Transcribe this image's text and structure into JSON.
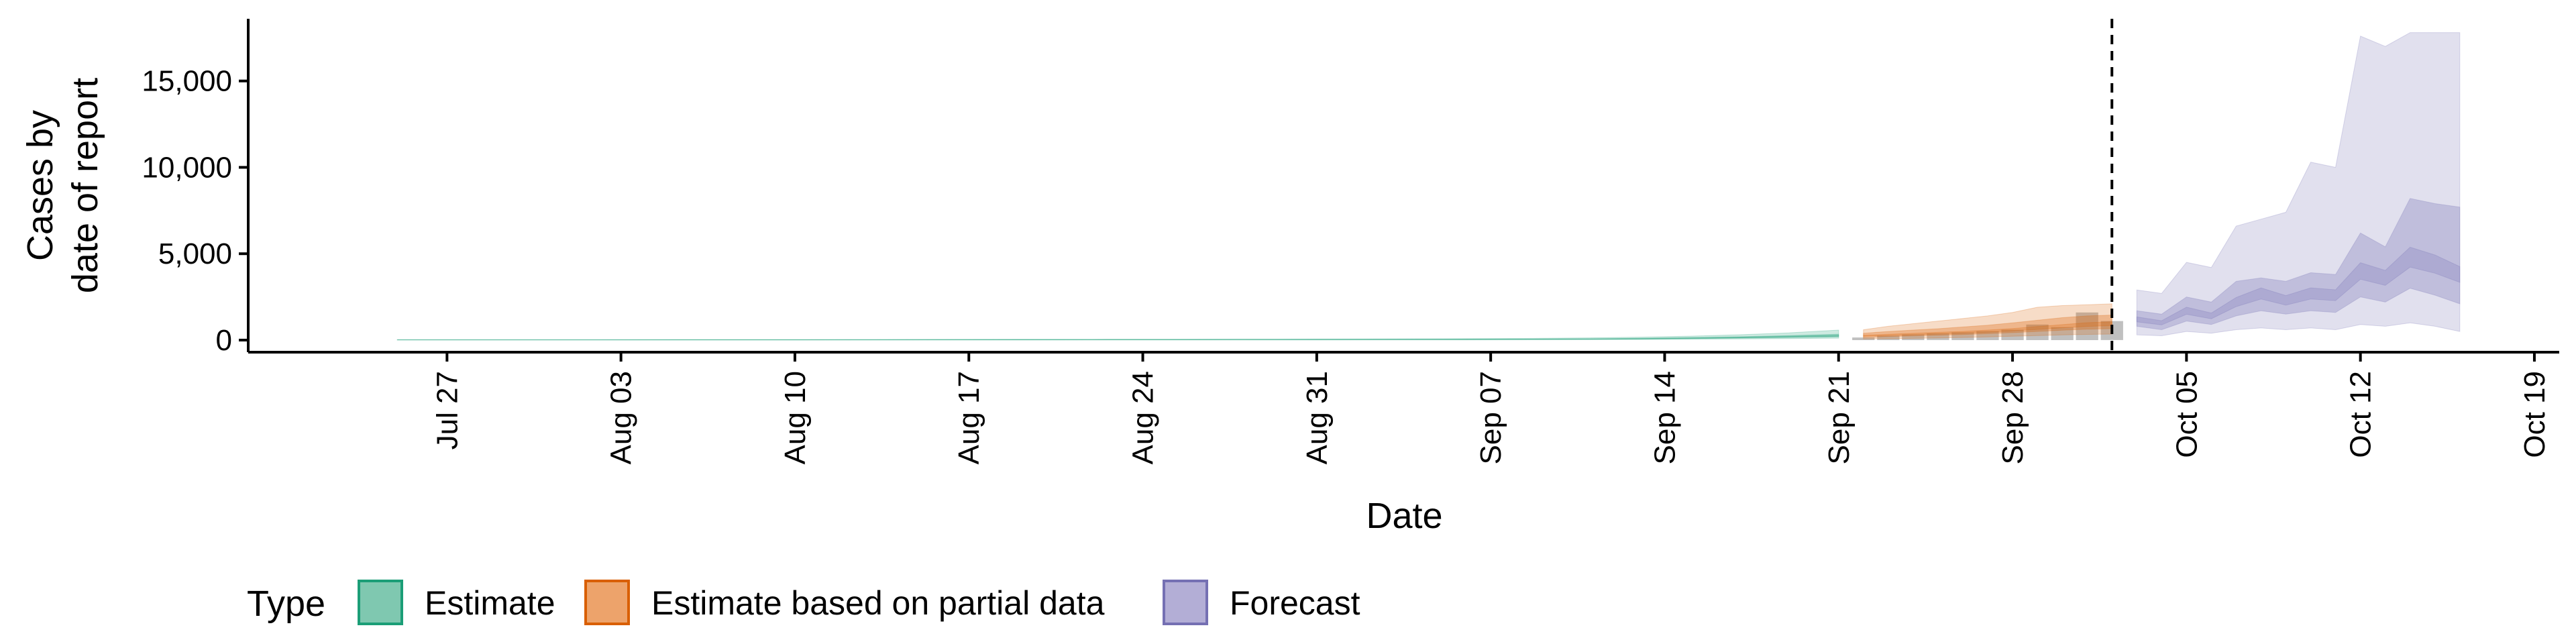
{
  "chart_data": {
    "type": "area",
    "xlabel": "Date",
    "ylabel_lines": [
      "Cases by",
      "date of report"
    ],
    "ylim": [
      -700,
      18600
    ],
    "yticks": [
      0,
      5000,
      10000,
      15000
    ],
    "ytick_labels": [
      "0",
      "5,000",
      "10,000",
      "15,000"
    ],
    "x_ticks": [
      "2020-07-27",
      "2020-08-03",
      "2020-08-10",
      "2020-08-17",
      "2020-08-24",
      "2020-08-31",
      "2020-09-07",
      "2020-09-14",
      "2020-09-21",
      "2020-09-28",
      "2020-10-05",
      "2020-10-12",
      "2020-10-19"
    ],
    "x_tick_labels": [
      "Jul 27",
      "Aug 03",
      "Aug 10",
      "Aug 17",
      "Aug 24",
      "Aug 31",
      "Sep 07",
      "Sep 14",
      "Sep 21",
      "Sep 28",
      "Oct 05",
      "Oct 12",
      "Oct 19"
    ],
    "xlim": [
      "2020-07-19",
      "2020-10-20"
    ],
    "vline_date": "2020-10-02",
    "legend": {
      "title": "Type",
      "position": "bottom-left",
      "entries": [
        {
          "label": "Estimate",
          "fill": "#7fc8b0",
          "stroke": "#1b9e77"
        },
        {
          "label": "Estimate based on partial data",
          "fill": "#eda36b",
          "stroke": "#d95f02"
        },
        {
          "label": "Forecast",
          "fill": "#b3aed6",
          "stroke": "#7570b3"
        }
      ]
    },
    "colors": {
      "estimate": "#1b9e77",
      "partial": "#d95f02",
      "forecast": "#7570b3",
      "reported": "#8c8c8c"
    },
    "series": [
      {
        "type_name": "Estimate",
        "dates": [
          "2020-07-25",
          "2020-07-28",
          "2020-08-01",
          "2020-08-04",
          "2020-08-07",
          "2020-08-10",
          "2020-08-13",
          "2020-08-16",
          "2020-08-19",
          "2020-08-22",
          "2020-08-25",
          "2020-08-28",
          "2020-08-31",
          "2020-09-03",
          "2020-09-06",
          "2020-09-09",
          "2020-09-11",
          "2020-09-13",
          "2020-09-15",
          "2020-09-17",
          "2020-09-19",
          "2020-09-21"
        ],
        "median": [
          15,
          15,
          15,
          16,
          16,
          17,
          18,
          20,
          22,
          24,
          26,
          28,
          30,
          35,
          40,
          50,
          60,
          80,
          110,
          150,
          200,
          250
        ],
        "lower90": [
          5,
          5,
          5,
          5,
          5,
          6,
          6,
          7,
          8,
          9,
          10,
          11,
          12,
          14,
          16,
          20,
          25,
          35,
          50,
          70,
          90,
          110
        ],
        "upper90": [
          30,
          30,
          30,
          32,
          33,
          35,
          38,
          42,
          46,
          50,
          55,
          60,
          66,
          75,
          85,
          105,
          130,
          170,
          230,
          310,
          420,
          580
        ],
        "lower50": [
          10,
          10,
          10,
          11,
          11,
          12,
          13,
          14,
          16,
          18,
          19,
          21,
          23,
          27,
          31,
          38,
          45,
          60,
          85,
          115,
          150,
          190
        ],
        "upper50": [
          20,
          20,
          20,
          21,
          22,
          23,
          24,
          27,
          29,
          32,
          35,
          37,
          40,
          46,
          52,
          65,
          78,
          105,
          145,
          195,
          260,
          340
        ]
      },
      {
        "type_name": "Estimate based on partial data",
        "dates": [
          "2020-09-22",
          "2020-09-23",
          "2020-09-24",
          "2020-09-25",
          "2020-09-26",
          "2020-09-27",
          "2020-09-28",
          "2020-09-29",
          "2020-09-30",
          "2020-10-01",
          "2020-10-02"
        ],
        "median": [
          250,
          300,
          350,
          400,
          450,
          520,
          600,
          700,
          800,
          900,
          950
        ],
        "lower90": [
          60,
          80,
          100,
          120,
          150,
          180,
          220,
          260,
          300,
          330,
          350
        ],
        "upper90": [
          600,
          800,
          950,
          1100,
          1250,
          1400,
          1600,
          1900,
          2000,
          2050,
          2100
        ],
        "lower50": [
          150,
          200,
          240,
          280,
          320,
          370,
          430,
          500,
          570,
          630,
          660
        ],
        "upper50": [
          400,
          500,
          580,
          660,
          760,
          860,
          1000,
          1150,
          1300,
          1400,
          1450
        ]
      },
      {
        "type_name": "Forecast",
        "dates": [
          "2020-10-03",
          "2020-10-04",
          "2020-10-05",
          "2020-10-06",
          "2020-10-07",
          "2020-10-08",
          "2020-10-09",
          "2020-10-10",
          "2020-10-11",
          "2020-10-12",
          "2020-10-13",
          "2020-10-14",
          "2020-10-15",
          "2020-10-16"
        ],
        "median": [
          1200,
          1000,
          1700,
          1400,
          2200,
          2700,
          2300,
          2700,
          2600,
          4000,
          3600,
          4800,
          4400,
          3800
        ],
        "lower90": [
          300,
          250,
          500,
          400,
          600,
          700,
          600,
          700,
          600,
          900,
          800,
          1000,
          800,
          500
        ],
        "upper90": [
          2900,
          2700,
          4500,
          4200,
          6600,
          7000,
          7400,
          10300,
          10000,
          17600,
          17000,
          17800,
          17800,
          17800
        ],
        "lower50": [
          800,
          600,
          1100,
          900,
          1400,
          1700,
          1500,
          1700,
          1600,
          2500,
          2200,
          3000,
          2600,
          2100
        ],
        "upper50": [
          1700,
          1500,
          2500,
          2200,
          3400,
          3600,
          3400,
          3900,
          3800,
          6200,
          5400,
          8200,
          7900,
          7700
        ]
      }
    ],
    "reported": {
      "dates": [
        "2020-09-22",
        "2020-09-23",
        "2020-09-24",
        "2020-09-25",
        "2020-09-26",
        "2020-09-27",
        "2020-09-28",
        "2020-09-29",
        "2020-09-30",
        "2020-10-01",
        "2020-10-02"
      ],
      "values": [
        150,
        260,
        330,
        390,
        450,
        520,
        600,
        900,
        750,
        1600,
        1100
      ]
    }
  }
}
